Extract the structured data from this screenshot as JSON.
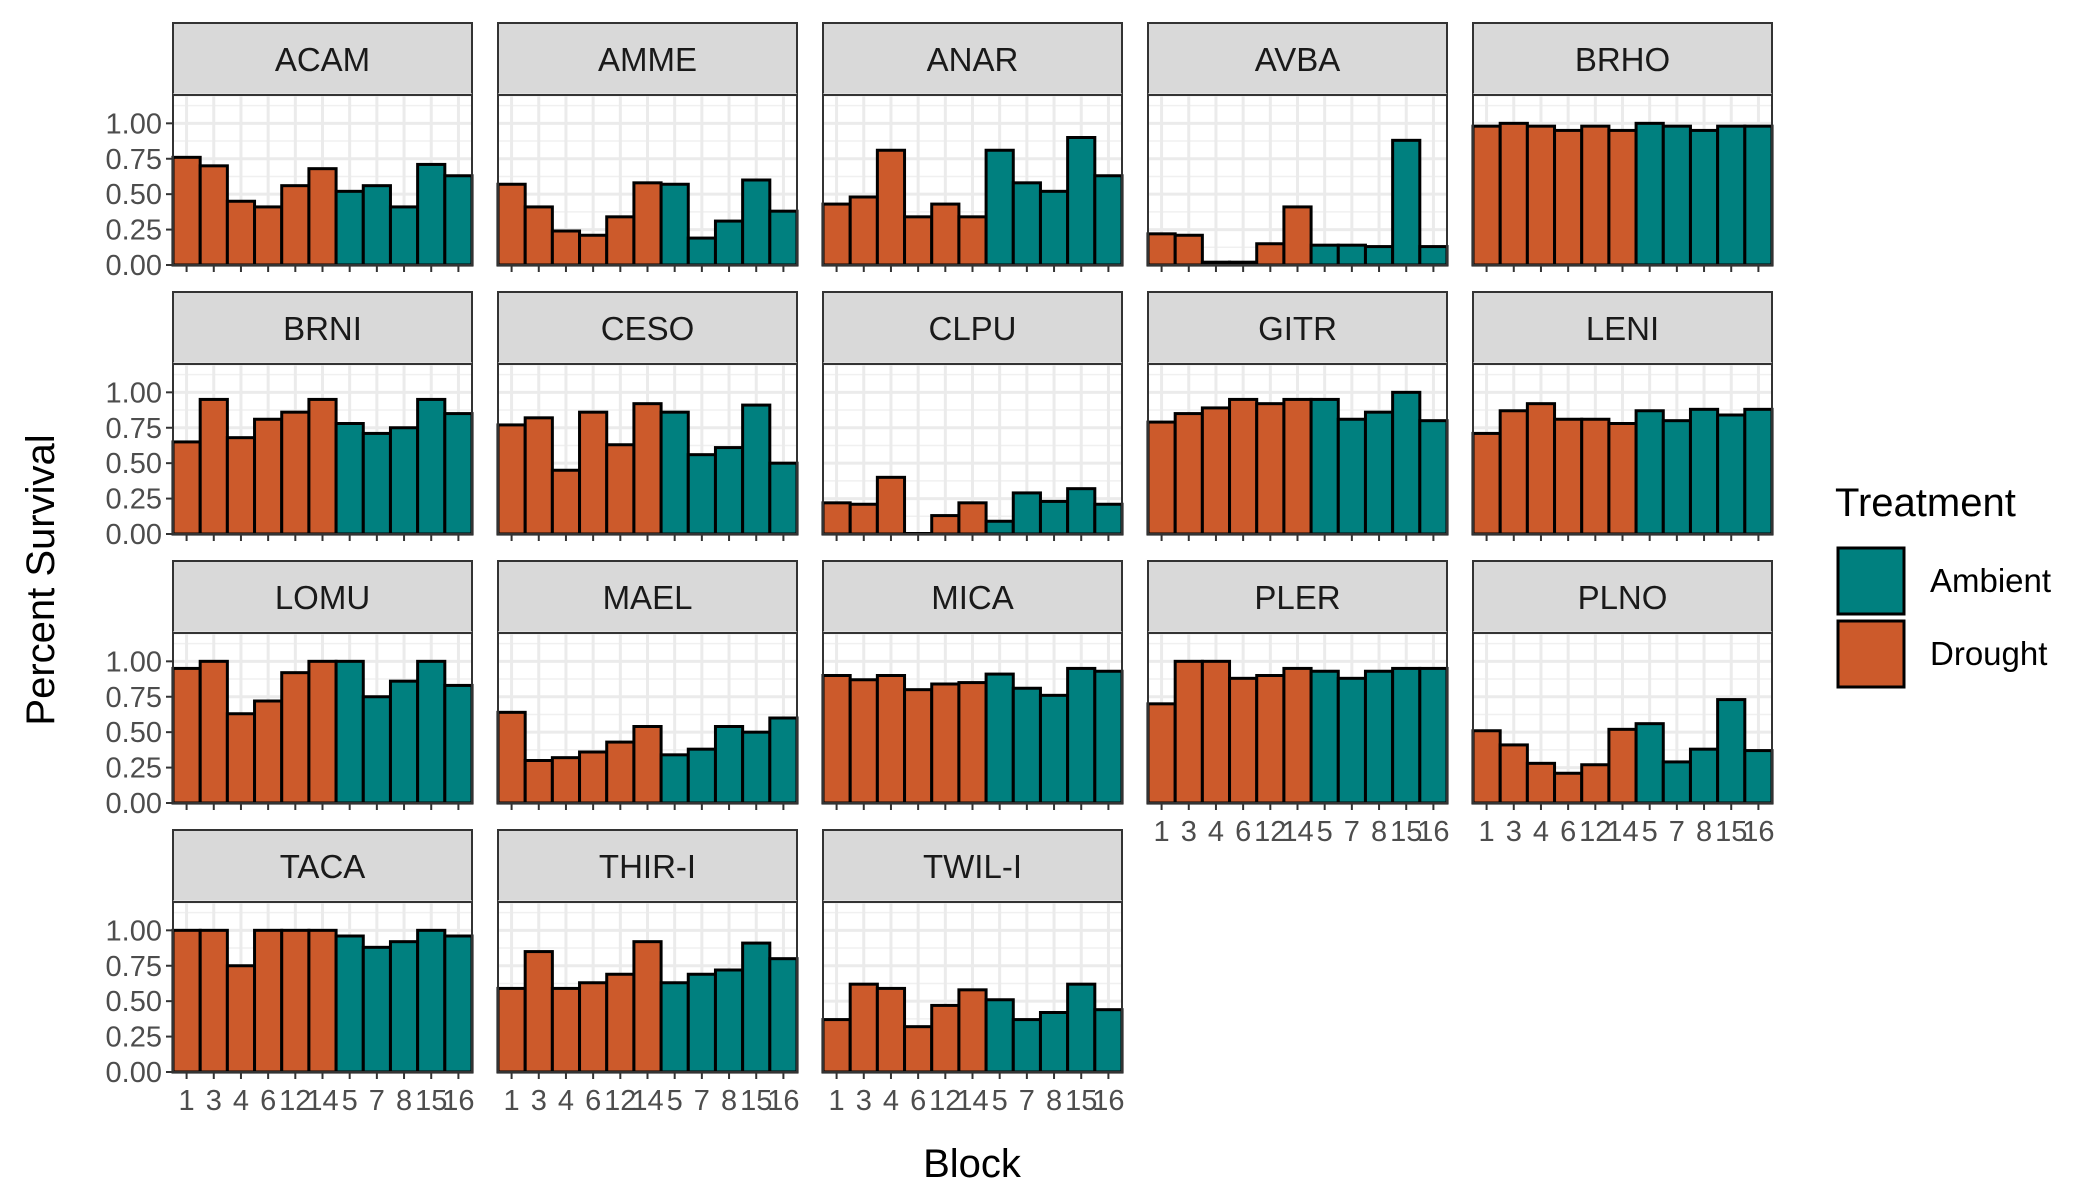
{
  "chart_data": {
    "type": "bar",
    "layout": "facet-grid",
    "xlabel": "Block",
    "ylabel": "Percent Survival",
    "ylim": [
      0,
      1.2
    ],
    "y_ticks": [
      "0.00",
      "0.25",
      "0.50",
      "0.75",
      "1.00"
    ],
    "y_tick_values": [
      0,
      0.25,
      0.5,
      0.75,
      1.0
    ],
    "x_tick_labels": [
      "1",
      "3",
      "4",
      "6",
      "12",
      "14",
      "5",
      "7",
      "8",
      "15",
      "16"
    ],
    "treatments_by_block": [
      "Drought",
      "Drought",
      "Drought",
      "Drought",
      "Drought",
      "Drought",
      "Ambient",
      "Ambient",
      "Ambient",
      "Ambient",
      "Ambient"
    ],
    "legend": {
      "title": "Treatment",
      "position": "right",
      "entries": [
        {
          "name": "Ambient",
          "color": "#00807F"
        },
        {
          "name": "Drought",
          "color": "#CC5A2B"
        }
      ]
    },
    "panels": [
      {
        "species": "ACAM",
        "values": [
          0.76,
          0.7,
          0.45,
          0.41,
          0.56,
          0.68,
          0.52,
          0.56,
          0.41,
          0.71,
          0.63
        ]
      },
      {
        "species": "AMME",
        "values": [
          0.57,
          0.41,
          0.24,
          0.21,
          0.34,
          0.58,
          0.57,
          0.19,
          0.31,
          0.6,
          0.38
        ]
      },
      {
        "species": "ANAR",
        "values": [
          0.43,
          0.48,
          0.81,
          0.34,
          0.43,
          0.34,
          0.81,
          0.58,
          0.52,
          0.9,
          0.63
        ]
      },
      {
        "species": "AVBA",
        "values": [
          0.22,
          0.21,
          0.02,
          0.02,
          0.15,
          0.41,
          0.14,
          0.14,
          0.13,
          0.88,
          0.13
        ]
      },
      {
        "species": "BRHO",
        "values": [
          0.98,
          1.0,
          0.98,
          0.95,
          0.98,
          0.95,
          1.0,
          0.98,
          0.95,
          0.98,
          0.98
        ]
      },
      {
        "species": "BRNI",
        "values": [
          0.65,
          0.95,
          0.68,
          0.81,
          0.86,
          0.95,
          0.78,
          0.71,
          0.75,
          0.95,
          0.85
        ]
      },
      {
        "species": "CESO",
        "values": [
          0.77,
          0.82,
          0.45,
          0.86,
          0.63,
          0.92,
          0.86,
          0.56,
          0.61,
          0.91,
          0.5
        ]
      },
      {
        "species": "CLPU",
        "values": [
          0.22,
          0.21,
          0.4,
          0.0,
          0.13,
          0.22,
          0.09,
          0.29,
          0.23,
          0.32,
          0.21
        ]
      },
      {
        "species": "GITR",
        "values": [
          0.79,
          0.85,
          0.89,
          0.95,
          0.92,
          0.95,
          0.95,
          0.81,
          0.86,
          1.0,
          0.8
        ]
      },
      {
        "species": "LENI",
        "values": [
          0.71,
          0.87,
          0.92,
          0.81,
          0.81,
          0.78,
          0.87,
          0.8,
          0.88,
          0.84,
          0.88
        ]
      },
      {
        "species": "LOMU",
        "values": [
          0.95,
          1.0,
          0.63,
          0.72,
          0.92,
          1.0,
          1.0,
          0.75,
          0.86,
          1.0,
          0.83
        ]
      },
      {
        "species": "MAEL",
        "values": [
          0.64,
          0.3,
          0.32,
          0.36,
          0.43,
          0.54,
          0.34,
          0.38,
          0.54,
          0.5,
          0.6
        ]
      },
      {
        "species": "MICA",
        "values": [
          0.9,
          0.87,
          0.9,
          0.8,
          0.84,
          0.85,
          0.91,
          0.81,
          0.76,
          0.95,
          0.93
        ]
      },
      {
        "species": "PLER",
        "values": [
          0.7,
          1.0,
          1.0,
          0.88,
          0.9,
          0.95,
          0.93,
          0.88,
          0.93,
          0.95,
          0.95
        ]
      },
      {
        "species": "PLNO",
        "values": [
          0.51,
          0.41,
          0.28,
          0.21,
          0.27,
          0.52,
          0.56,
          0.29,
          0.38,
          0.73,
          0.37
        ]
      },
      {
        "species": "TACA",
        "values": [
          1.0,
          1.0,
          0.75,
          1.0,
          1.0,
          1.0,
          0.96,
          0.88,
          0.92,
          1.0,
          0.96
        ]
      },
      {
        "species": "THIR-I",
        "values": [
          0.59,
          0.85,
          0.59,
          0.63,
          0.69,
          0.92,
          0.63,
          0.69,
          0.72,
          0.91,
          0.8
        ]
      },
      {
        "species": "TWIL-I",
        "values": [
          0.37,
          0.62,
          0.59,
          0.32,
          0.47,
          0.58,
          0.51,
          0.37,
          0.42,
          0.62,
          0.44
        ]
      }
    ]
  }
}
